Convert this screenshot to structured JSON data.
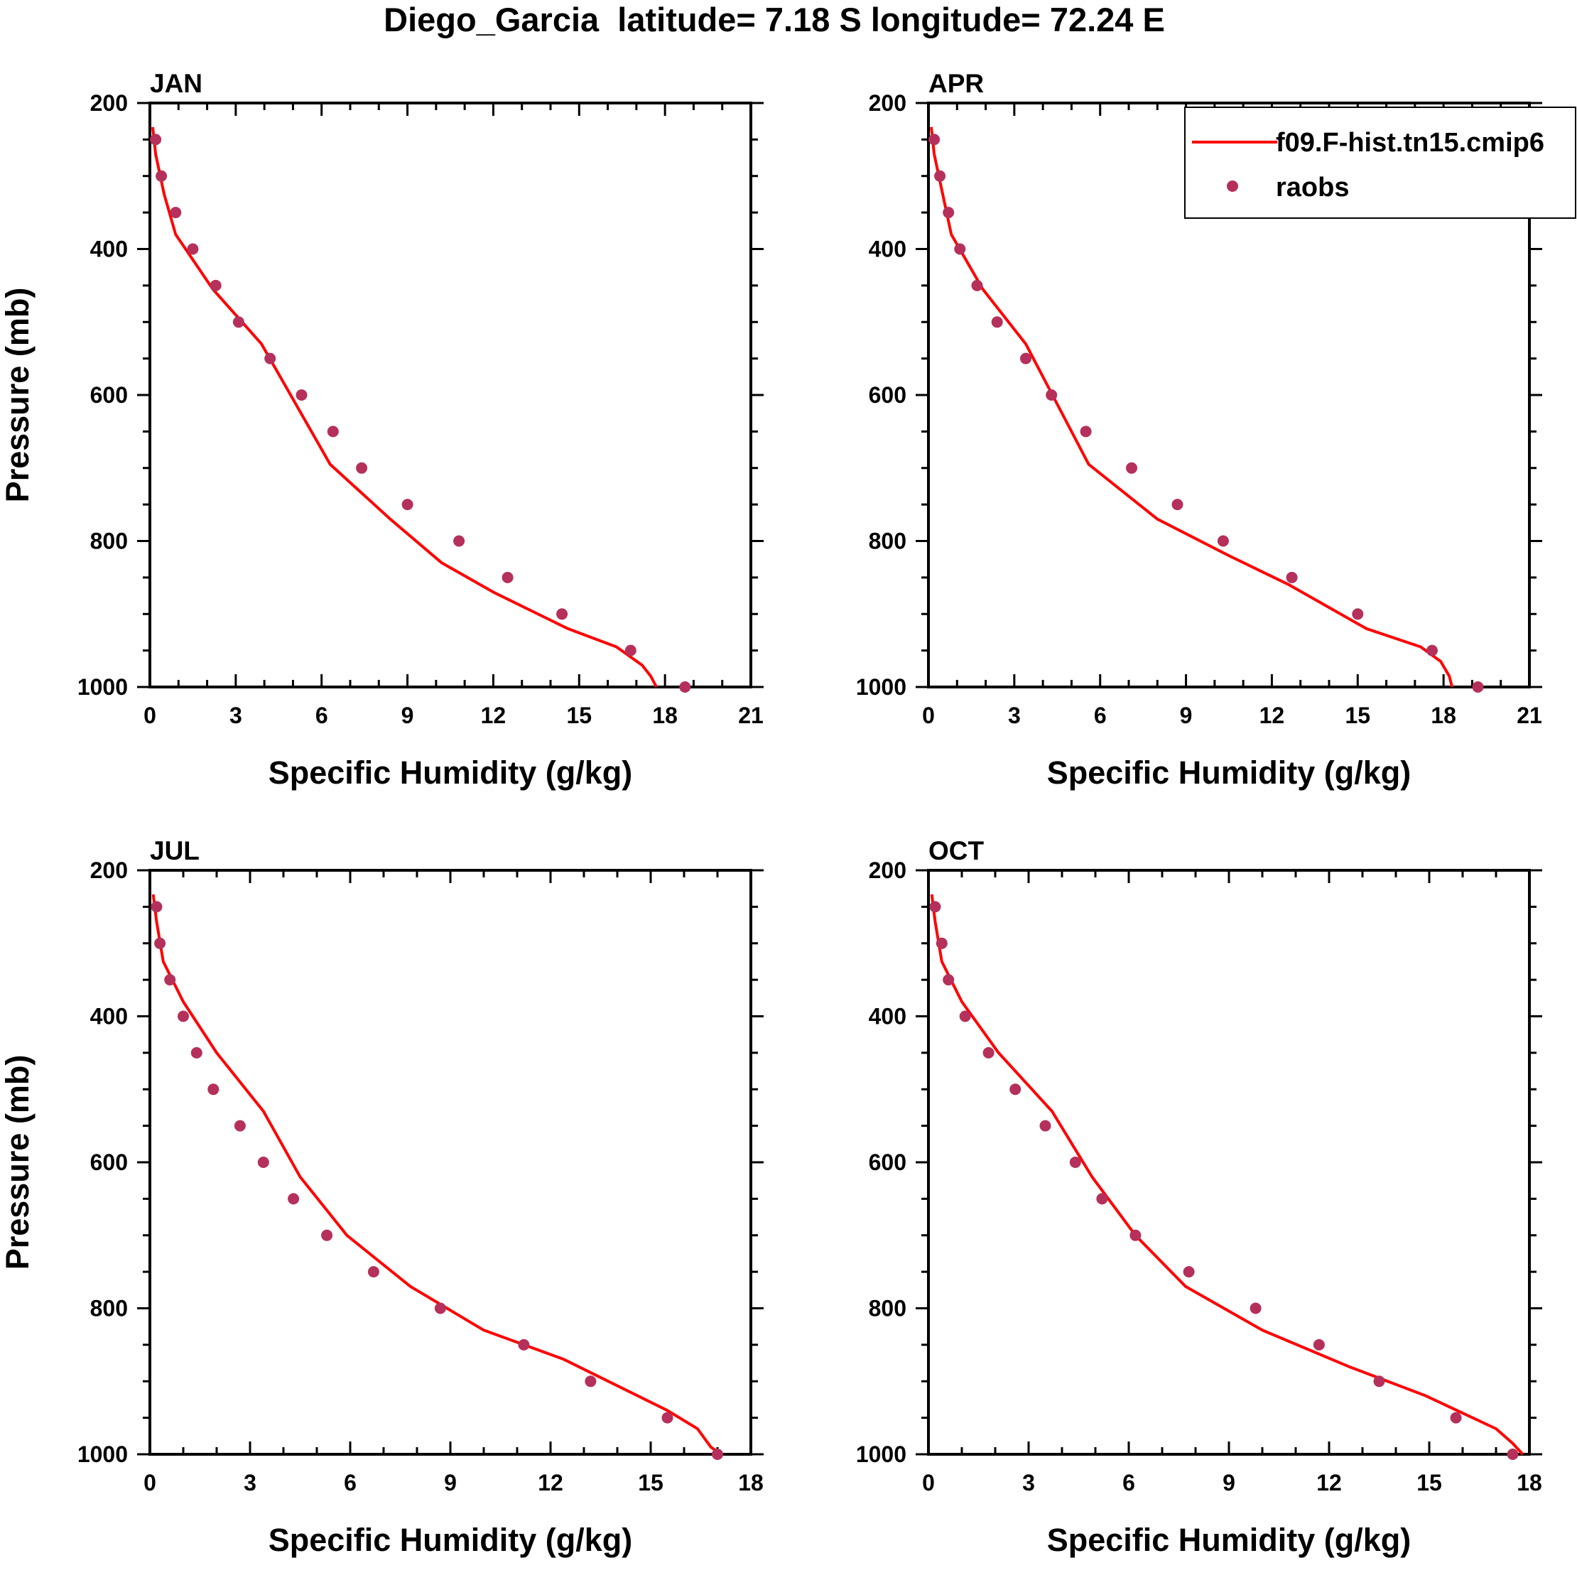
{
  "title": "Diego_Garcia  latitude= 7.18 S longitude= 72.24 E",
  "colors": {
    "model": "#ff0000",
    "obs": "#b5305a",
    "axis": "#000000",
    "background": "#ffffff"
  },
  "legend": {
    "placement": "top-right of APR panel",
    "entries": [
      {
        "name": "f09.F-hist.tn15.cmip6",
        "style": "line"
      },
      {
        "name": "raobs",
        "style": "marker"
      }
    ]
  },
  "chart_data": [
    {
      "type": "line",
      "title": "JAN",
      "xlabel": "Specific Humidity (g/kg)",
      "ylabel": "Pressure (mb)",
      "xlim": [
        0,
        21
      ],
      "xticks": [
        0,
        3,
        6,
        9,
        12,
        15,
        18,
        21
      ],
      "ylim": [
        200,
        1000
      ],
      "yticks": [
        200,
        400,
        600,
        800,
        1000
      ],
      "y_reversed": true,
      "series": [
        {
          "name": "f09.F-hist.tn15.cmip6",
          "kind": "line",
          "x": [
            0.1,
            0.2,
            0.5,
            0.9,
            2.2,
            3.9,
            6.3,
            8.4,
            10.2,
            12.0,
            14.6,
            16.3,
            17.2,
            17.5,
            17.7
          ],
          "y": [
            233,
            270,
            325,
            380,
            455,
            530,
            695,
            770,
            830,
            870,
            920,
            945,
            970,
            985,
            1000
          ]
        },
        {
          "name": "raobs",
          "kind": "marker",
          "x": [
            0.2,
            0.4,
            0.9,
            1.5,
            2.3,
            3.1,
            4.2,
            5.3,
            6.4,
            7.4,
            9.0,
            10.8,
            12.5,
            14.4,
            16.8,
            18.7
          ],
          "y": [
            250,
            300,
            350,
            400,
            450,
            500,
            550,
            600,
            650,
            700,
            750,
            800,
            850,
            900,
            950,
            1000
          ]
        }
      ]
    },
    {
      "type": "line",
      "title": "APR",
      "xlabel": "Specific Humidity (g/kg)",
      "ylabel": "",
      "xlim": [
        0,
        21
      ],
      "xticks": [
        0,
        3,
        6,
        9,
        12,
        15,
        18,
        21
      ],
      "ylim": [
        200,
        1000
      ],
      "yticks": [
        200,
        400,
        600,
        800,
        1000
      ],
      "y_reversed": true,
      "series": [
        {
          "name": "f09.F-hist.tn15.cmip6",
          "kind": "line",
          "x": [
            0.1,
            0.2,
            0.5,
            0.8,
            1.9,
            3.4,
            4.6,
            5.6,
            8.0,
            10.5,
            12.6,
            15.3,
            17.2,
            17.9,
            18.2,
            18.3
          ],
          "y": [
            233,
            270,
            325,
            380,
            455,
            530,
            620,
            695,
            770,
            820,
            860,
            920,
            945,
            965,
            985,
            1000
          ]
        },
        {
          "name": "raobs",
          "kind": "marker",
          "x": [
            0.2,
            0.4,
            0.7,
            1.1,
            1.7,
            2.4,
            3.4,
            4.3,
            5.5,
            7.1,
            8.7,
            10.3,
            12.7,
            15.0,
            17.6,
            19.2
          ],
          "y": [
            250,
            300,
            350,
            400,
            450,
            500,
            550,
            600,
            650,
            700,
            750,
            800,
            850,
            900,
            950,
            1000
          ]
        }
      ]
    },
    {
      "type": "line",
      "title": "JUL",
      "xlabel": "Specific Humidity (g/kg)",
      "ylabel": "Pressure (mb)",
      "xlim": [
        0,
        18
      ],
      "xticks": [
        0,
        3,
        6,
        9,
        12,
        15,
        18
      ],
      "ylim": [
        200,
        1000
      ],
      "yticks": [
        200,
        400,
        600,
        800,
        1000
      ],
      "y_reversed": true,
      "series": [
        {
          "name": "f09.F-hist.tn15.cmip6",
          "kind": "line",
          "x": [
            0.1,
            0.2,
            0.4,
            1.0,
            2.0,
            3.4,
            4.5,
            5.9,
            7.8,
            10.0,
            12.4,
            15.5,
            16.4,
            16.8,
            17.1
          ],
          "y": [
            233,
            270,
            325,
            380,
            450,
            530,
            620,
            700,
            770,
            830,
            870,
            940,
            965,
            990,
            1000
          ]
        },
        {
          "name": "raobs",
          "kind": "marker",
          "x": [
            0.2,
            0.3,
            0.6,
            1.0,
            1.4,
            1.9,
            2.7,
            3.4,
            4.3,
            5.3,
            6.7,
            8.7,
            11.2,
            13.2,
            15.5,
            17.0
          ],
          "y": [
            250,
            300,
            350,
            400,
            450,
            500,
            550,
            600,
            650,
            700,
            750,
            800,
            850,
            900,
            950,
            1000
          ]
        }
      ]
    },
    {
      "type": "line",
      "title": "OCT",
      "xlabel": "Specific Humidity (g/kg)",
      "ylabel": "",
      "xlim": [
        0,
        18
      ],
      "xticks": [
        0,
        3,
        6,
        9,
        12,
        15,
        18
      ],
      "ylim": [
        200,
        1000
      ],
      "yticks": [
        200,
        400,
        600,
        800,
        1000
      ],
      "y_reversed": true,
      "series": [
        {
          "name": "f09.F-hist.tn15.cmip6",
          "kind": "line",
          "x": [
            0.1,
            0.2,
            0.4,
            1.0,
            2.1,
            3.7,
            4.9,
            6.2,
            7.7,
            10.0,
            12.6,
            14.9,
            17.0,
            17.5,
            17.8
          ],
          "y": [
            233,
            270,
            325,
            380,
            450,
            530,
            620,
            700,
            770,
            830,
            880,
            920,
            965,
            985,
            1000
          ]
        },
        {
          "name": "raobs",
          "kind": "marker",
          "x": [
            0.2,
            0.4,
            0.6,
            1.1,
            1.8,
            2.6,
            3.5,
            4.4,
            5.2,
            6.2,
            7.8,
            9.8,
            11.7,
            13.5,
            15.8,
            17.5
          ],
          "y": [
            250,
            300,
            350,
            400,
            450,
            500,
            550,
            600,
            650,
            700,
            750,
            800,
            850,
            900,
            950,
            1000
          ]
        }
      ]
    }
  ]
}
